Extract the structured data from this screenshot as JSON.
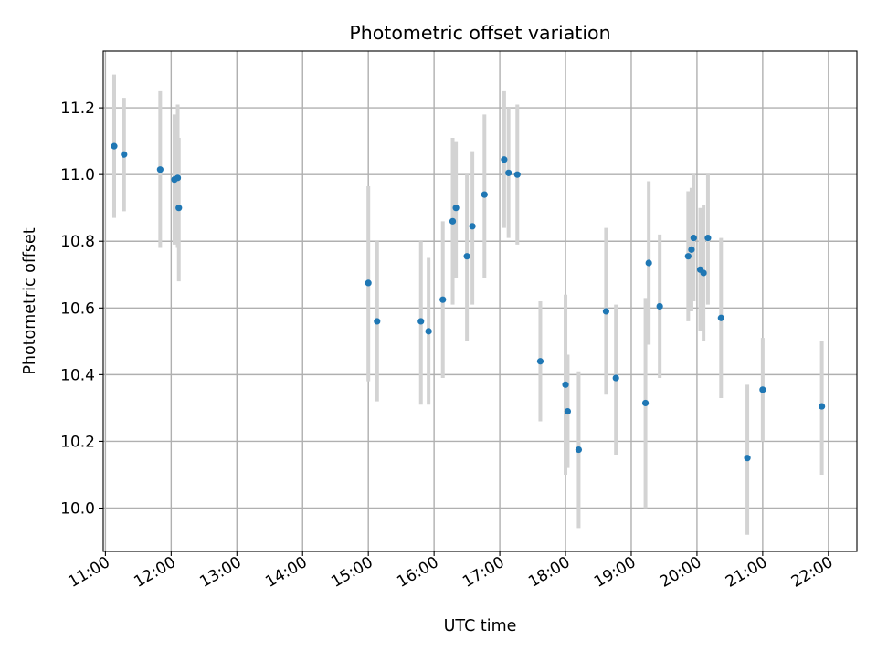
{
  "chart_data": {
    "type": "scatter",
    "title": "Photometric offset variation",
    "xlabel": "UTC time",
    "ylabel": "Photometric offset",
    "xlim": [
      "10:58",
      "22:26"
    ],
    "ylim": [
      9.87,
      11.37
    ],
    "x_ticks": [
      "11:00",
      "12:00",
      "13:00",
      "14:00",
      "15:00",
      "16:00",
      "17:00",
      "18:00",
      "19:00",
      "20:00",
      "21:00",
      "22:00"
    ],
    "y_ticks": [
      "10.0",
      "10.2",
      "10.4",
      "10.6",
      "10.8",
      "11.0",
      "11.2"
    ],
    "grid": true,
    "colors": {
      "point": "#1f77b4",
      "errorbar": "#d3d3d3"
    },
    "series": [
      {
        "points": [
          {
            "t": "11:08",
            "y": 11.085,
            "lo": 10.87,
            "hi": 11.3
          },
          {
            "t": "11:17",
            "y": 11.06,
            "lo": 10.89,
            "hi": 11.23
          },
          {
            "t": "11:50",
            "y": 11.015,
            "lo": 10.78,
            "hi": 11.25
          },
          {
            "t": "12:03",
            "y": 10.985,
            "lo": 10.79,
            "hi": 11.18
          },
          {
            "t": "12:06",
            "y": 10.99,
            "lo": 10.78,
            "hi": 11.21
          },
          {
            "t": "12:07",
            "y": 10.9,
            "lo": 10.68,
            "hi": 11.11
          },
          {
            "t": "15:00",
            "y": 10.675,
            "lo": 10.38,
            "hi": 10.965
          },
          {
            "t": "15:08",
            "y": 10.56,
            "lo": 10.32,
            "hi": 10.8
          },
          {
            "t": "15:48",
            "y": 10.56,
            "lo": 10.31,
            "hi": 10.8
          },
          {
            "t": "15:55",
            "y": 10.53,
            "lo": 10.31,
            "hi": 10.75
          },
          {
            "t": "16:08",
            "y": 10.625,
            "lo": 10.39,
            "hi": 10.86
          },
          {
            "t": "16:17",
            "y": 10.86,
            "lo": 10.61,
            "hi": 11.11
          },
          {
            "t": "16:20",
            "y": 10.9,
            "lo": 10.69,
            "hi": 11.1
          },
          {
            "t": "16:30",
            "y": 10.755,
            "lo": 10.5,
            "hi": 11.0
          },
          {
            "t": "16:35",
            "y": 10.845,
            "lo": 10.61,
            "hi": 11.07
          },
          {
            "t": "16:46",
            "y": 10.94,
            "lo": 10.69,
            "hi": 11.18
          },
          {
            "t": "17:04",
            "y": 11.045,
            "lo": 10.84,
            "hi": 11.25
          },
          {
            "t": "17:08",
            "y": 11.005,
            "lo": 10.81,
            "hi": 11.2
          },
          {
            "t": "17:16",
            "y": 11.0,
            "lo": 10.79,
            "hi": 11.21
          },
          {
            "t": "17:37",
            "y": 10.44,
            "lo": 10.26,
            "hi": 10.62
          },
          {
            "t": "18:00",
            "y": 10.37,
            "lo": 10.1,
            "hi": 10.64
          },
          {
            "t": "18:02",
            "y": 10.29,
            "lo": 10.12,
            "hi": 10.46
          },
          {
            "t": "18:12",
            "y": 10.175,
            "lo": 9.94,
            "hi": 10.41
          },
          {
            "t": "18:37",
            "y": 10.59,
            "lo": 10.34,
            "hi": 10.84
          },
          {
            "t": "18:46",
            "y": 10.39,
            "lo": 10.16,
            "hi": 10.61
          },
          {
            "t": "19:13",
            "y": 10.315,
            "lo": 10.0,
            "hi": 10.63
          },
          {
            "t": "19:16",
            "y": 10.735,
            "lo": 10.49,
            "hi": 10.98
          },
          {
            "t": "19:26",
            "y": 10.605,
            "lo": 10.39,
            "hi": 10.82
          },
          {
            "t": "19:52",
            "y": 10.755,
            "lo": 10.56,
            "hi": 10.95
          },
          {
            "t": "19:55",
            "y": 10.775,
            "lo": 10.59,
            "hi": 10.96
          },
          {
            "t": "19:57",
            "y": 10.81,
            "lo": 10.62,
            "hi": 11.0
          },
          {
            "t": "20:03",
            "y": 10.715,
            "lo": 10.53,
            "hi": 10.9
          },
          {
            "t": "20:06",
            "y": 10.705,
            "lo": 10.5,
            "hi": 10.91
          },
          {
            "t": "20:10",
            "y": 10.81,
            "lo": 10.61,
            "hi": 11.0
          },
          {
            "t": "20:22",
            "y": 10.57,
            "lo": 10.33,
            "hi": 10.81
          },
          {
            "t": "20:46",
            "y": 10.15,
            "lo": 9.92,
            "hi": 10.37
          },
          {
            "t": "21:00",
            "y": 10.355,
            "lo": 10.2,
            "hi": 10.51
          },
          {
            "t": "21:54",
            "y": 10.305,
            "lo": 10.1,
            "hi": 10.5
          }
        ]
      }
    ]
  }
}
